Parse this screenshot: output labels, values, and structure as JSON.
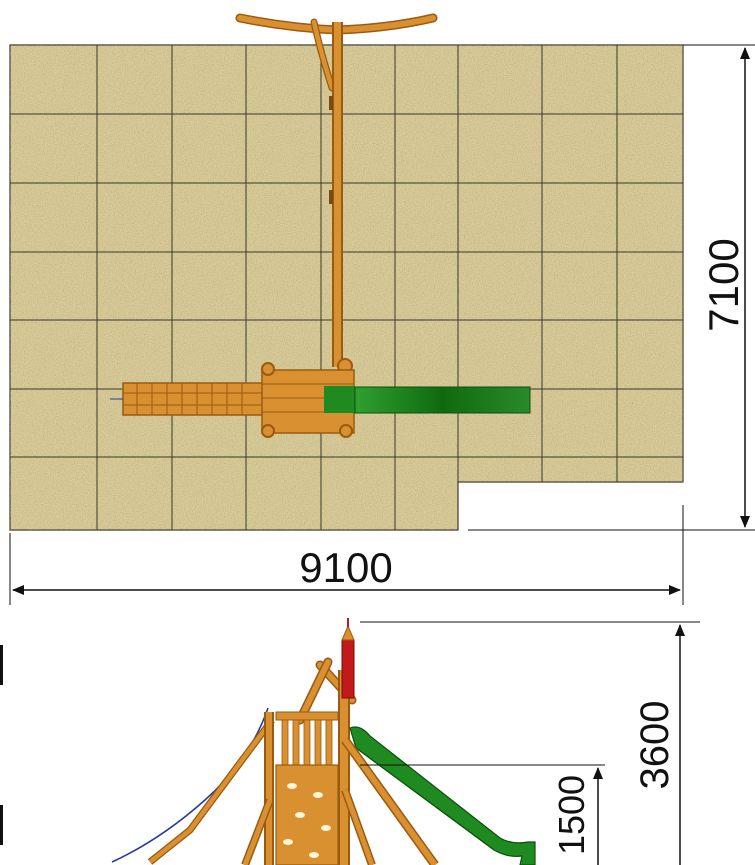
{
  "dimensions": {
    "plan_width": "9100",
    "plan_depth": "7100",
    "total_height": "3600",
    "platform_height": "1500"
  },
  "colors": {
    "safety_surface": "#d9cc9a",
    "surface_grid": "#3a3a2a",
    "timber": "#d89030",
    "timber_dark": "#9a5a10",
    "slide": "#1f8a1f",
    "slide_dark": "#0c4f0c",
    "roof_spire": "#c21a1a",
    "rope": "#2a3a9a",
    "dimension_line": "#111111"
  }
}
